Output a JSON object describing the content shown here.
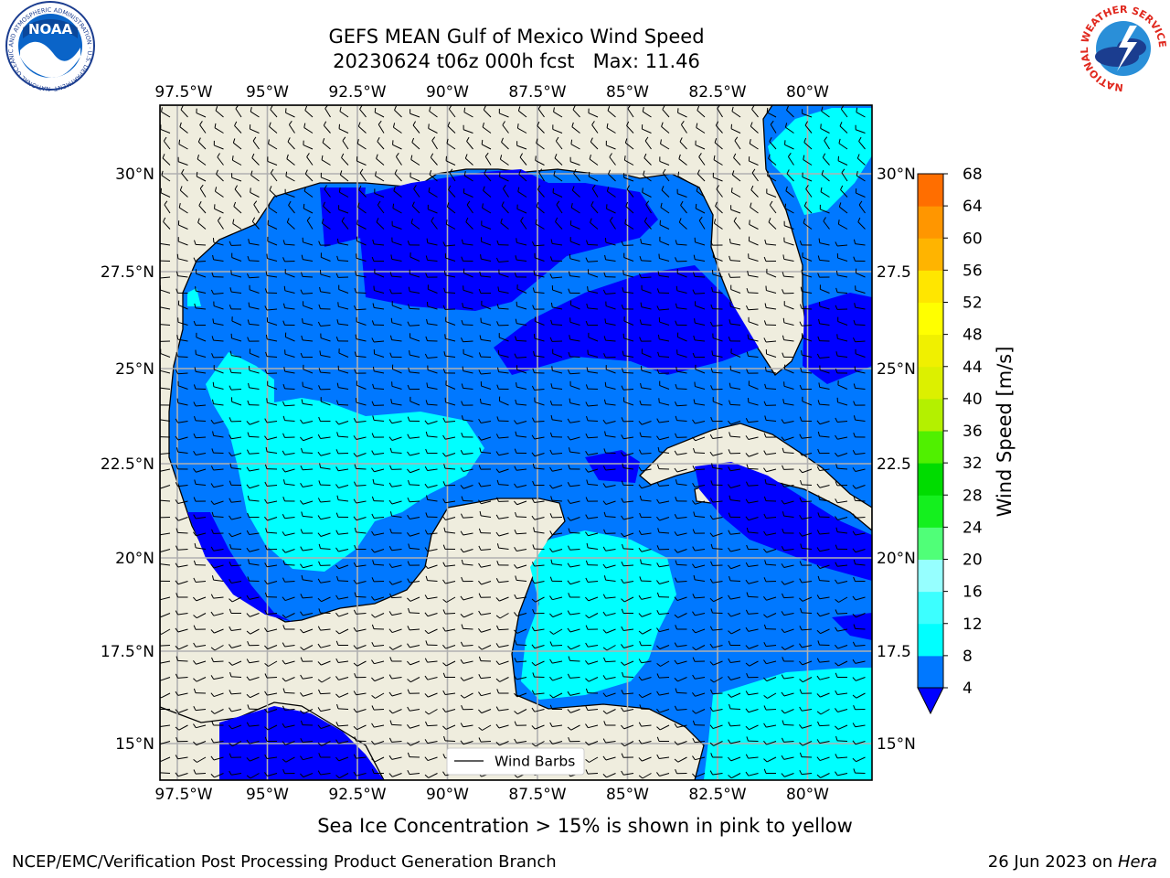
{
  "title": {
    "line1": "GEFS MEAN Gulf of Mexico Wind Speed",
    "line2": "20230624 t06z 000h fcst   Max: 11.46"
  },
  "logos": {
    "left": {
      "text": "NOAA",
      "ring": "NATIONAL OCEANIC AND ATMOSPHERIC ADMINISTRATION · U.S. DEPARTMENT OF COMMERCE"
    },
    "right": {
      "ring": "NATIONAL WEATHER SERVICE"
    }
  },
  "axes": {
    "lon_labels": [
      "97.5°W",
      "95°W",
      "92.5°W",
      "90°W",
      "87.5°W",
      "85°W",
      "82.5°W",
      "80°W"
    ],
    "lat_labels": [
      "15°N",
      "17.5°N",
      "20°N",
      "22.5°N",
      "25°N",
      "27.5°N",
      "30°N"
    ],
    "lat_labels_right": [
      "15°N",
      "17.5",
      "20°N",
      "22.5",
      "25°N",
      "27.5",
      "30°N"
    ]
  },
  "legend": {
    "label": "Wind Barbs"
  },
  "colorbar": {
    "label": "Wind Speed [m/s]",
    "ticks": [
      "4",
      "8",
      "12",
      "16",
      "20",
      "24",
      "28",
      "32",
      "36",
      "40",
      "44",
      "48",
      "52",
      "56",
      "60",
      "64",
      "68"
    ],
    "colors": [
      "#0078ff",
      "#00ffff",
      "#3cffff",
      "#96ffff",
      "#50ff78",
      "#14f01e",
      "#00dc00",
      "#50f000",
      "#b4f000",
      "#dcf000",
      "#f0f000",
      "#ffff00",
      "#ffe600",
      "#ffb400",
      "#ff9600",
      "#ff6e00",
      "#ff3c00",
      "#ff0000"
    ],
    "under_color": "#0000ff"
  },
  "map_colors": {
    "land": "#efedde",
    "band_4_8": "#0078ff",
    "band_0_4": "#0000ff",
    "band_8_12": "#00ffff",
    "band_12_16": "#3cffff"
  },
  "caption": "Sea Ice Concentration > 15% is shown in pink to yellow",
  "footer": {
    "left": "NCEP/EMC/Verification Post Processing Product Generation Branch",
    "right_date": "26 Jun 2023 on ",
    "right_host": "Hera"
  }
}
